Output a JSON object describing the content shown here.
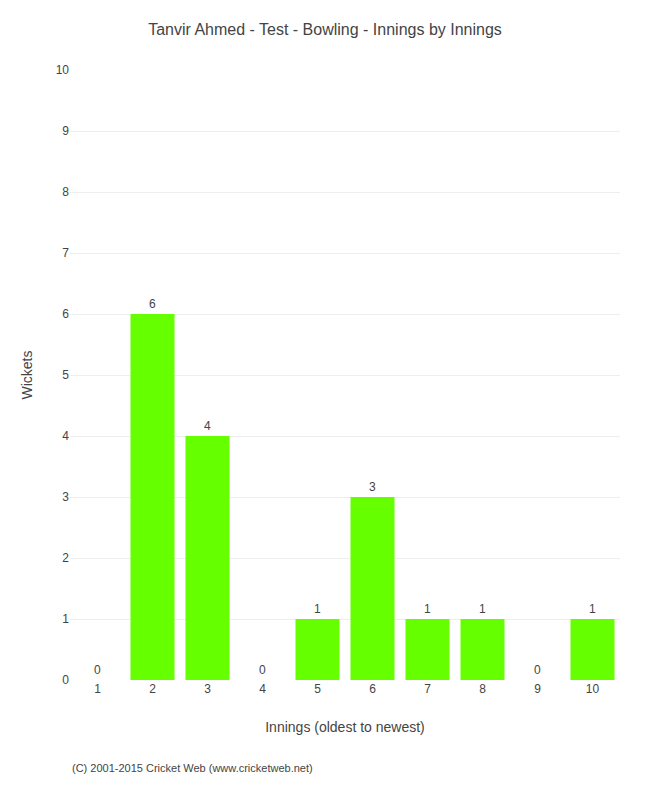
{
  "chart_data": {
    "type": "bar",
    "title": "Tanvir Ahmed - Test - Bowling - Innings by Innings",
    "xlabel": "Innings (oldest to newest)",
    "ylabel": "Wickets",
    "categories": [
      "1",
      "2",
      "3",
      "4",
      "5",
      "6",
      "7",
      "8",
      "9",
      "10"
    ],
    "values": [
      0,
      6,
      4,
      0,
      1,
      3,
      1,
      1,
      0,
      1
    ],
    "color": "#66ff00",
    "ylim": [
      0,
      10
    ],
    "yticks": [
      0,
      1,
      2,
      3,
      4,
      5,
      6,
      7,
      8,
      9,
      10
    ],
    "grid": true,
    "data_labels": true,
    "annotations": [
      "(C) 2001-2015 Cricket Web (www.cricketweb.net)"
    ]
  }
}
